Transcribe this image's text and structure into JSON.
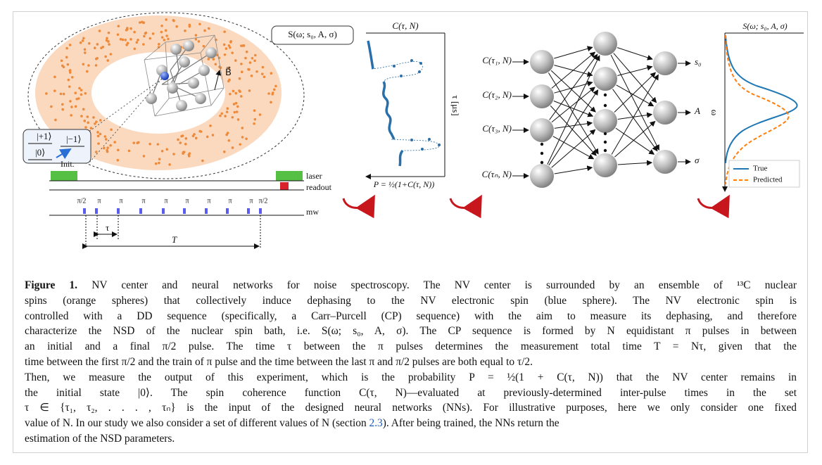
{
  "figure": {
    "spectrum_label": "S(ω; s₀, A, σ)",
    "levels": {
      "plus": "|+1⟩",
      "minus": "|−1⟩",
      "zero": "|0⟩"
    },
    "field": "B⃗",
    "sequence": {
      "init": "Init.",
      "laser": "laser",
      "readout": "readout",
      "mw": "mw",
      "half_pi": "π/2",
      "pi": "π",
      "tau": "τ",
      "total": "T"
    },
    "coherence_plot": {
      "top": "C(τ, N)",
      "axis": "τ [μs]",
      "bottom": "P = ½(1+C(τ, N))"
    },
    "network": {
      "inputs": [
        "C(τ₁, N)",
        "C(τ₂, N)",
        "C(τ₃, N)",
        "C(τₙ, N)"
      ],
      "outputs": [
        "s₀",
        "A",
        "σ"
      ]
    },
    "nsd_plot": {
      "title": "S(ω; s₀, A, σ)",
      "axis": "ω",
      "legend": [
        "True",
        "Predicted"
      ]
    }
  },
  "caption": {
    "label": "Figure 1.",
    "lines": [
      " NV center and neural networks for noise spectroscopy. The NV center is surrounded by an ensemble of ¹³C nuclear",
      "spins (orange spheres) that collectively induce dephasing to the NV electronic spin (blue sphere). The NV electronic spin is",
      "controlled with a DD sequence (specifically, a Carr–Purcell (CP) sequence) with the aim to measure its dephasing, and therefore",
      "characterize the NSD of the nuclear spin bath, i.e. S(ω; s₀, A, σ). The CP sequence is formed by N equidistant π pulses in between",
      "an initial and a final π/2 pulse. The time τ between the π pulses determines the measurement total time T = Nτ, given that the",
      "time between the first π/2 and the train of π pulse and the time between the last π and π/2 pulses are both equal to τ/2.",
      "Then, we measure the output of this experiment, which is the probability P = ½(1 + C(τ, N)) that the NV center remains in",
      "the initial state |0⟩. The spin coherence function C(τ, N)—evaluated at previously-determined inter-pulse times in the set",
      "τ ∈ {τ₁, τ₂, . . . , τₙ} is the input of the designed neural networks (NNs). For illustrative purposes, here we only consider one fixed"
    ],
    "link_line": {
      "before": "value of N. In our study we also consider a set of different values of N (section ",
      "link": "2.3",
      "after": "). After being trained, the NNs return the"
    },
    "last_line": "estimation of the NSD parameters."
  }
}
